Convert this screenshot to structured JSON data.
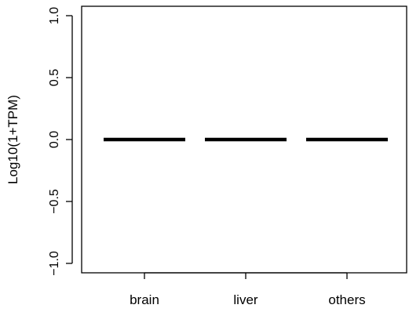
{
  "chart_data": {
    "type": "box",
    "categories": [
      "brain",
      "liver",
      "others"
    ],
    "values": [
      0,
      0,
      0
    ],
    "ylabel": "Log10(1+TPM)",
    "ylim": [
      -1.0,
      1.0
    ],
    "yticks": [
      "1.0",
      "0.5",
      "0.0",
      "−0.5",
      "−1.0"
    ],
    "ytick_values": [
      1.0,
      0.5,
      0.0,
      -0.5,
      -1.0
    ],
    "grid": false
  }
}
